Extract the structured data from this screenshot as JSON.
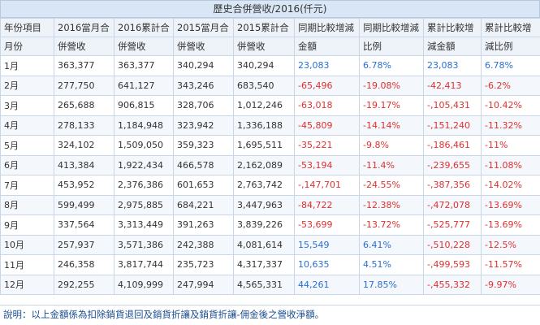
{
  "title": "歷史合併營收/2016(仟元)",
  "headers": {
    "month_a": "年份項目",
    "month_b": "月份",
    "c1_a": "2016當月合",
    "c1_b": "併營收",
    "c2_a": "2016累計合",
    "c2_b": "併營收",
    "c3_a": "2015當月合",
    "c3_b": "併營收",
    "c4_a": "2015累計合",
    "c4_b": "併營收",
    "c5_a": "同期比較增減",
    "c5_b": "金額",
    "c6_a": "同期比較增減",
    "c6_b": "比例",
    "c7_a": "累計比較增",
    "c7_b": "減金額",
    "c8_a": "累計比較增",
    "c8_b": "減比例"
  },
  "rows": [
    {
      "month": "1月",
      "m2016": "363,377",
      "c2016": "363,377",
      "m2015": "340,294",
      "c2015": "340,294",
      "diff": "23,083",
      "diff_pct": "6.78%",
      "cum_diff": "23,083",
      "cum_pct": "6.78%"
    },
    {
      "month": "2月",
      "m2016": "277,750",
      "c2016": "641,127",
      "m2015": "343,246",
      "c2015": "683,540",
      "diff": "-65,496",
      "diff_pct": "-19.08%",
      "cum_diff": "-42,413",
      "cum_pct": "-6.2%"
    },
    {
      "month": "3月",
      "m2016": "265,688",
      "c2016": "906,815",
      "m2015": "328,706",
      "c2015": "1,012,246",
      "diff": "-63,018",
      "diff_pct": "-19.17%",
      "cum_diff": "-,105,431",
      "cum_pct": "-10.42%"
    },
    {
      "month": "4月",
      "m2016": "278,133",
      "c2016": "1,184,948",
      "m2015": "323,942",
      "c2015": "1,336,188",
      "diff": "-45,809",
      "diff_pct": "-14.14%",
      "cum_diff": "-,151,240",
      "cum_pct": "-11.32%"
    },
    {
      "month": "5月",
      "m2016": "324,102",
      "c2016": "1,509,050",
      "m2015": "359,323",
      "c2015": "1,695,511",
      "diff": "-35,221",
      "diff_pct": "-9.8%",
      "cum_diff": "-,186,461",
      "cum_pct": "-11%"
    },
    {
      "month": "6月",
      "m2016": "413,384",
      "c2016": "1,922,434",
      "m2015": "466,578",
      "c2015": "2,162,089",
      "diff": "-53,194",
      "diff_pct": "-11.4%",
      "cum_diff": "-,239,655",
      "cum_pct": "-11.08%"
    },
    {
      "month": "7月",
      "m2016": "453,952",
      "c2016": "2,376,386",
      "m2015": "601,653",
      "c2015": "2,763,742",
      "diff": "-,147,701",
      "diff_pct": "-24.55%",
      "cum_diff": "-,387,356",
      "cum_pct": "-14.02%"
    },
    {
      "month": "8月",
      "m2016": "599,499",
      "c2016": "2,975,885",
      "m2015": "684,221",
      "c2015": "3,447,963",
      "diff": "-84,722",
      "diff_pct": "-12.38%",
      "cum_diff": "-,472,078",
      "cum_pct": "-13.69%"
    },
    {
      "month": "9月",
      "m2016": "337,564",
      "c2016": "3,313,449",
      "m2015": "391,263",
      "c2015": "3,839,226",
      "diff": "-53,699",
      "diff_pct": "-13.72%",
      "cum_diff": "-,525,777",
      "cum_pct": "-13.69%"
    },
    {
      "month": "10月",
      "m2016": "257,937",
      "c2016": "3,571,386",
      "m2015": "242,388",
      "c2015": "4,081,614",
      "diff": "15,549",
      "diff_pct": "6.41%",
      "cum_diff": "-,510,228",
      "cum_pct": "-12.5%"
    },
    {
      "month": "11月",
      "m2016": "246,358",
      "c2016": "3,817,744",
      "m2015": "235,723",
      "c2015": "4,317,337",
      "diff": "10,635",
      "diff_pct": "4.51%",
      "cum_diff": "-,499,593",
      "cum_pct": "-11.57%"
    },
    {
      "month": "12月",
      "m2016": "292,255",
      "c2016": "4,109,999",
      "m2015": "247,994",
      "c2015": "4,565,331",
      "diff": "44,261",
      "diff_pct": "17.85%",
      "cum_diff": "-,455,332",
      "cum_pct": "-9.97%"
    }
  ],
  "note": "說明：以上金額係為扣除銷貨退回及銷貨折讓及銷貨折讓-佣金後之營收淨額。",
  "colors": {
    "positive": "#2a6fd0",
    "negative": "#e0302f",
    "header_bg": "#d9e6f5"
  }
}
